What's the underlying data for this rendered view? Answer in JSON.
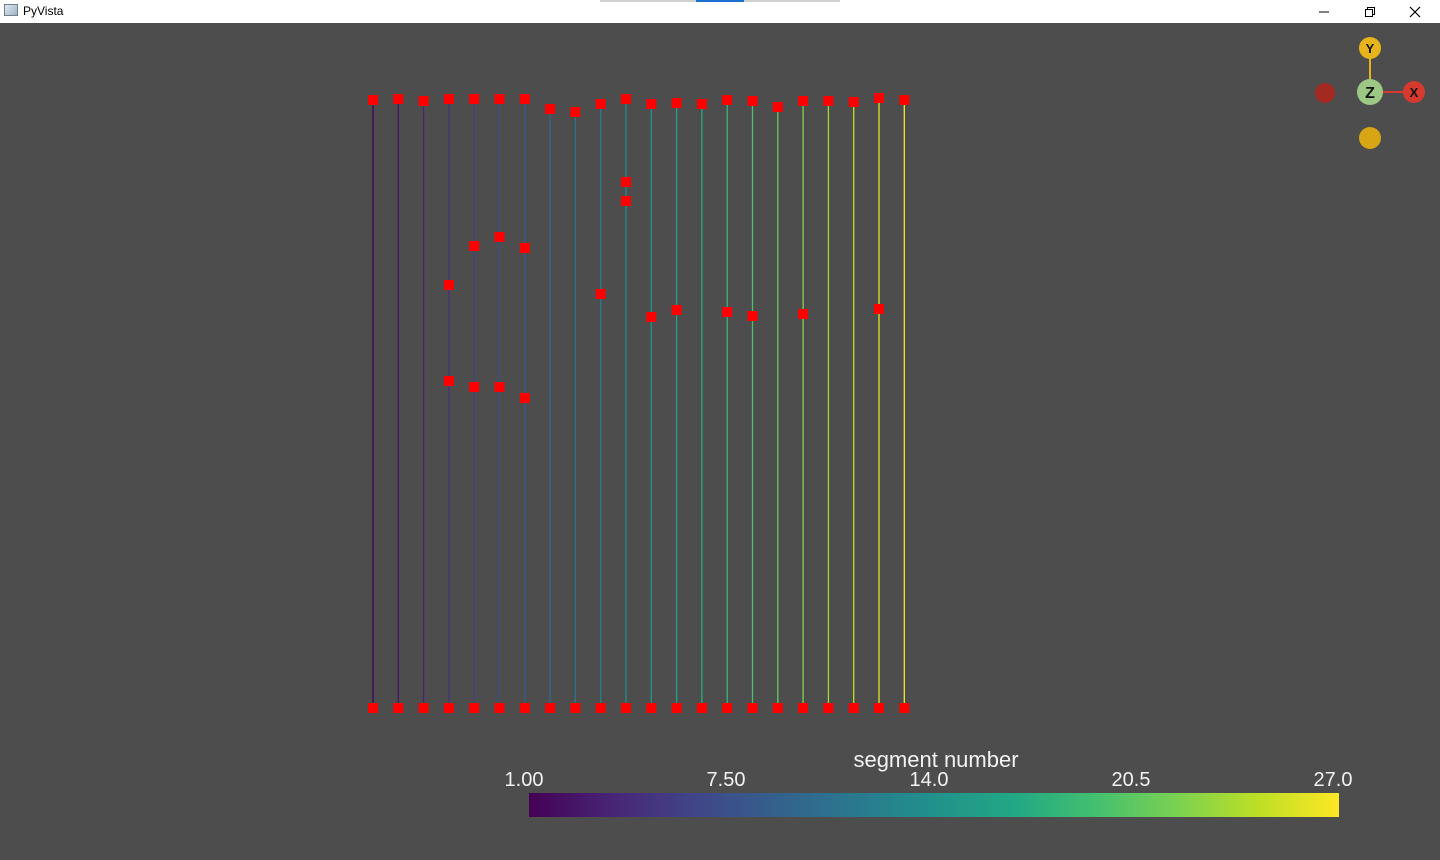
{
  "window": {
    "title": "PyVista",
    "icon": "app-window-icon",
    "controls": [
      "minimize-icon",
      "restore-icon",
      "close-icon"
    ]
  },
  "orientation_widget": {
    "labels": {
      "x": "X",
      "y": "Y",
      "z": "Z"
    },
    "colors": {
      "x": "#d63a2f",
      "y": "#e8b41c",
      "z": "#9cc784",
      "neg_x": "#a32a22",
      "neg_y": "#d8a514"
    }
  },
  "scalar_bar": {
    "title": "segment number",
    "ticks": [
      "1.00",
      "7.50",
      "14.0",
      "20.5",
      "27.0"
    ],
    "range": [
      1,
      27
    ],
    "colormap": "viridis"
  },
  "scene": {
    "background": "#4d4d4d",
    "point_color": "#ff0000",
    "point_size_note": "square markers",
    "segments": [
      {
        "id": 1,
        "pts": [
          100,
          708
        ]
      },
      {
        "id": 2,
        "pts": [
          99,
          708
        ]
      },
      {
        "id": 3,
        "pts": [
          101,
          708
        ]
      },
      {
        "id": 4,
        "pts": [
          99,
          285,
          381,
          708
        ]
      },
      {
        "id": 5,
        "pts": [
          99,
          246,
          387,
          708
        ]
      },
      {
        "id": 6,
        "pts": [
          99,
          237,
          387,
          708
        ]
      },
      {
        "id": 7,
        "pts": [
          99,
          248,
          398,
          708
        ]
      },
      {
        "id": 8,
        "pts": [
          109,
          708
        ]
      },
      {
        "id": 9,
        "pts": [
          112,
          708
        ]
      },
      {
        "id": 10,
        "pts": [
          104,
          294,
          708
        ]
      },
      {
        "id": 11,
        "pts": [
          99,
          182,
          201,
          708
        ]
      },
      {
        "id": 12,
        "pts": [
          104,
          317,
          708
        ]
      },
      {
        "id": 13,
        "pts": [
          103,
          310,
          708
        ]
      },
      {
        "id": 14,
        "pts": [
          104,
          708
        ]
      },
      {
        "id": 15,
        "pts": [
          100,
          312,
          708
        ]
      },
      {
        "id": 16,
        "pts": [
          101,
          316,
          708
        ]
      },
      {
        "id": 17,
        "pts": [
          107,
          708
        ]
      },
      {
        "id": 18,
        "pts": [
          101,
          314,
          708
        ]
      },
      {
        "id": 19,
        "pts": [
          101,
          708
        ]
      },
      {
        "id": 20,
        "pts": [
          102,
          708
        ]
      },
      {
        "id": 21,
        "pts": [
          98,
          309,
          708
        ]
      },
      {
        "id": 22,
        "pts": [
          100,
          708
        ]
      }
    ]
  }
}
